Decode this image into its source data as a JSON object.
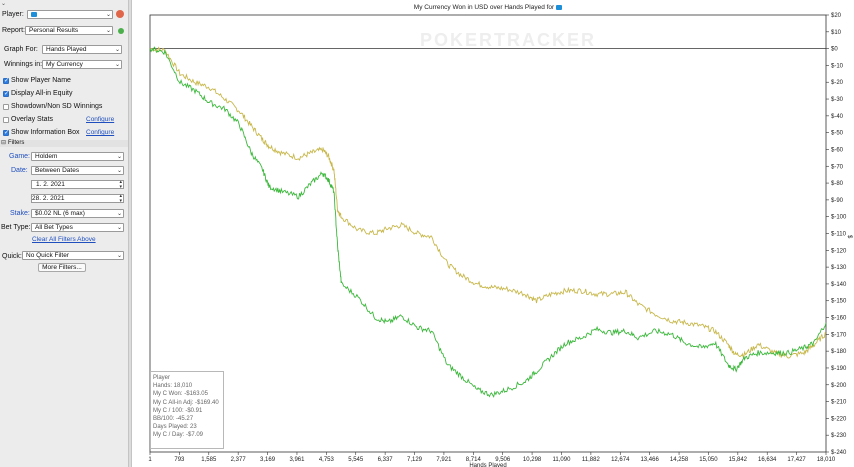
{
  "sidebar": {
    "player_label": "Player:",
    "player_value": "",
    "report_label": "Report:",
    "report_value": "Personal Results",
    "graph_for_label": "Graph For:",
    "graph_for_value": "Hands Played",
    "winnings_label": "Winnings in:",
    "winnings_value": "My Currency",
    "checkboxes": [
      {
        "label": "Show Player Name",
        "checked": true
      },
      {
        "label": "Display All-in Equity",
        "checked": true
      },
      {
        "label": "Showdown/Non SD Winnings",
        "checked": false
      },
      {
        "label": "Overlay Stats",
        "checked": false,
        "link": "Configure"
      },
      {
        "label": "Show Information Box",
        "checked": true,
        "link": "Configure"
      }
    ],
    "filters_header": "Filters",
    "game_label": "Game:",
    "game_value": "Holdem",
    "date_label": "Date:",
    "date_value": "Between Dates",
    "date_from": "1. 2. 2021",
    "date_to": "28. 2. 2021",
    "stake_label": "Stake:",
    "stake_value": "$0.02 NL (6 max)",
    "bet_type_label": "Bet Type:",
    "bet_type_value": "All Bet Types",
    "clear_filters": "Clear All Filters Above",
    "quick_label": "Quick:",
    "quick_value": "No Quick Filter",
    "more_filters": "More Filters..."
  },
  "chart_data": {
    "type": "line",
    "title": "My Currency Won in USD over Hands Played for",
    "watermark": "POKERTRACKER",
    "xlabel": "Hands Played",
    "ylabel": "$",
    "x_ticks": [
      "1",
      "793",
      "1,585",
      "2,377",
      "3,169",
      "3,961",
      "4,753",
      "5,545",
      "6,337",
      "7,129",
      "7,921",
      "8,714",
      "9,506",
      "10,298",
      "11,090",
      "11,882",
      "12,674",
      "13,466",
      "14,258",
      "15,050",
      "15,842",
      "16,634",
      "17,427",
      "18,010"
    ],
    "y_ticks": [
      "$20",
      "$10",
      "$0",
      "$-10",
      "$-20",
      "$-30",
      "$-40",
      "$-50",
      "$-60",
      "$-70",
      "$-80",
      "$-90",
      "$-100",
      "$-110",
      "$-120",
      "$-130",
      "$-140",
      "$-150",
      "$-160",
      "$-170",
      "$-180",
      "$-190",
      "$-200",
      "$-210",
      "$-220",
      "$-230",
      "$-240"
    ],
    "xlim": [
      1,
      18010
    ],
    "ylim": [
      -240,
      20
    ],
    "series": [
      {
        "name": "My C Won",
        "color": "#3cb83c",
        "points": [
          [
            1,
            0
          ],
          [
            400,
            -2
          ],
          [
            800,
            -20
          ],
          [
            1200,
            -25
          ],
          [
            1585,
            -32
          ],
          [
            2000,
            -36
          ],
          [
            2377,
            -45
          ],
          [
            2700,
            -62
          ],
          [
            3000,
            -72
          ],
          [
            3169,
            -82
          ],
          [
            3500,
            -85
          ],
          [
            3961,
            -88
          ],
          [
            4300,
            -80
          ],
          [
            4600,
            -74
          ],
          [
            4753,
            -78
          ],
          [
            4900,
            -85
          ],
          [
            5000,
            -118
          ],
          [
            5100,
            -140
          ],
          [
            5545,
            -148
          ],
          [
            6000,
            -160
          ],
          [
            6337,
            -163
          ],
          [
            6700,
            -159
          ],
          [
            7129,
            -166
          ],
          [
            7500,
            -168
          ],
          [
            7921,
            -188
          ],
          [
            8300,
            -195
          ],
          [
            8714,
            -203
          ],
          [
            9100,
            -206
          ],
          [
            9506,
            -203
          ],
          [
            10000,
            -198
          ],
          [
            10298,
            -192
          ],
          [
            10700,
            -183
          ],
          [
            11090,
            -175
          ],
          [
            11500,
            -172
          ],
          [
            11882,
            -167
          ],
          [
            12300,
            -169
          ],
          [
            12674,
            -168
          ],
          [
            13000,
            -172
          ],
          [
            13466,
            -168
          ],
          [
            13900,
            -170
          ],
          [
            14258,
            -175
          ],
          [
            14700,
            -178
          ],
          [
            15050,
            -175
          ],
          [
            15400,
            -188
          ],
          [
            15600,
            -191
          ],
          [
            15842,
            -184
          ],
          [
            16200,
            -181
          ],
          [
            16634,
            -181
          ],
          [
            17000,
            -181
          ],
          [
            17427,
            -178
          ],
          [
            17700,
            -175
          ],
          [
            18010,
            -163.05
          ]
        ]
      },
      {
        "name": "My C All-in Adj",
        "color": "#c8b84c",
        "points": [
          [
            1,
            0
          ],
          [
            400,
            -1
          ],
          [
            800,
            -15
          ],
          [
            1200,
            -20
          ],
          [
            1585,
            -23
          ],
          [
            2000,
            -30
          ],
          [
            2377,
            -37
          ],
          [
            2700,
            -46
          ],
          [
            3000,
            -54
          ],
          [
            3169,
            -58
          ],
          [
            3500,
            -62
          ],
          [
            3961,
            -65
          ],
          [
            4300,
            -62
          ],
          [
            4600,
            -60
          ],
          [
            4753,
            -64
          ],
          [
            4900,
            -72
          ],
          [
            5000,
            -96
          ],
          [
            5100,
            -100
          ],
          [
            5545,
            -108
          ],
          [
            6000,
            -110
          ],
          [
            6337,
            -107
          ],
          [
            6700,
            -105
          ],
          [
            7129,
            -110
          ],
          [
            7500,
            -112
          ],
          [
            7921,
            -128
          ],
          [
            8300,
            -135
          ],
          [
            8714,
            -140
          ],
          [
            9100,
            -142
          ],
          [
            9506,
            -143
          ],
          [
            10000,
            -146
          ],
          [
            10298,
            -150
          ],
          [
            10700,
            -146
          ],
          [
            11090,
            -144
          ],
          [
            11500,
            -144
          ],
          [
            11882,
            -146
          ],
          [
            12300,
            -146
          ],
          [
            12674,
            -145
          ],
          [
            13000,
            -152
          ],
          [
            13466,
            -158
          ],
          [
            13900,
            -162
          ],
          [
            14258,
            -163
          ],
          [
            14700,
            -165
          ],
          [
            15050,
            -168
          ],
          [
            15400,
            -176
          ],
          [
            15600,
            -182
          ],
          [
            15842,
            -182
          ],
          [
            16200,
            -176
          ],
          [
            16634,
            -181
          ],
          [
            17000,
            -183
          ],
          [
            17427,
            -181
          ],
          [
            17700,
            -176
          ],
          [
            18010,
            -169.4
          ]
        ]
      }
    ],
    "info_box": {
      "heading": "Player",
      "lines": [
        "Hands: 18,010",
        "My C Won: -$163.05",
        "My C All-in Adj: -$169.40",
        "My C / 100: -$0.91",
        "BB/100: -45.27",
        "Days Played: 23",
        "My C / Day: -$7.09"
      ]
    },
    "grid": false
  }
}
